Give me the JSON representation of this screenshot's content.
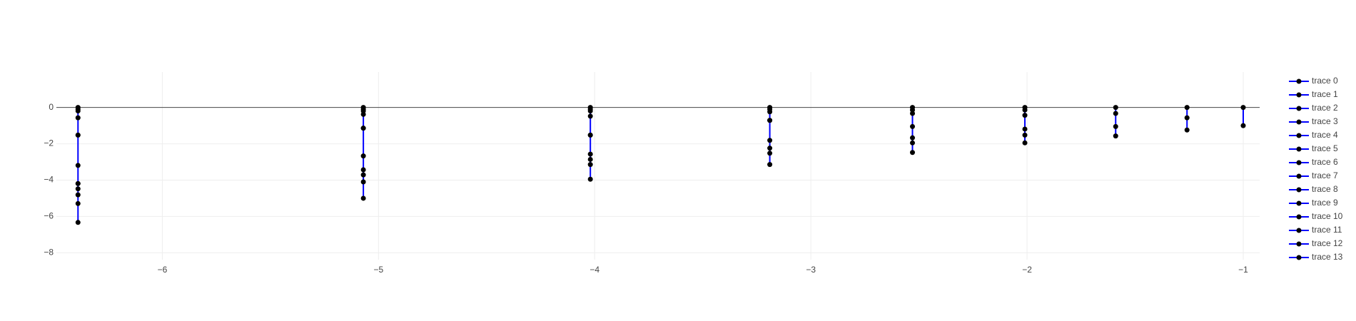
{
  "chart_data": {
    "type": "line",
    "line_color": "#0000ff",
    "marker_color": "#000000",
    "grid": true,
    "legend": "right",
    "xlim": [
      -6.49,
      -0.924
    ],
    "ylim": [
      -8.38,
      1.95
    ],
    "xticks": [
      {
        "value": -6,
        "label": "−6"
      },
      {
        "value": -5,
        "label": "−5"
      },
      {
        "value": -4,
        "label": "−4"
      },
      {
        "value": -3,
        "label": "−3"
      },
      {
        "value": -2,
        "label": "−2"
      },
      {
        "value": -1,
        "label": "−1"
      }
    ],
    "yticks": [
      0,
      {
        "value": -2,
        "label": "−2"
      },
      {
        "value": -4,
        "label": "−4"
      },
      {
        "value": -6,
        "label": "−6"
      },
      {
        "value": -8,
        "label": "−8"
      }
    ],
    "series": [
      {
        "name": "trace 0",
        "x": [
          -6.39,
          -6.39,
          -6.39,
          -6.39,
          -6.39
        ],
        "values": [
          0,
          -0.1,
          -0.19,
          -0.57,
          -1.52
        ]
      },
      {
        "name": "trace 1",
        "x": [
          -6.39,
          -6.39,
          -6.39
        ],
        "values": [
          -1.52,
          -3.19,
          -4.19
        ]
      },
      {
        "name": "trace 2",
        "x": [
          -6.39,
          -6.39,
          -6.39,
          -6.39,
          -6.39
        ],
        "values": [
          -4.19,
          -4.48,
          -4.81,
          -5.29,
          -6.33
        ]
      },
      {
        "name": "trace 3",
        "x": [
          -5.07,
          -5.07,
          -5.07,
          -5.07,
          -5.07
        ],
        "values": [
          0,
          -0.1,
          -0.19,
          -0.38,
          -1.14
        ]
      },
      {
        "name": "trace 4",
        "x": [
          -5.07,
          -5.07,
          -5.07,
          -5.07,
          -5.07,
          -5.07
        ],
        "values": [
          -1.14,
          -2.67,
          -3.43,
          -3.71,
          -4.1,
          -5.0
        ]
      },
      {
        "name": "trace 5",
        "x": [
          -4.02,
          -4.02,
          -4.02,
          -4.02,
          -4.02
        ],
        "values": [
          0,
          -0.1,
          -0.19,
          -0.48,
          -1.52
        ]
      },
      {
        "name": "trace 6",
        "x": [
          -4.02,
          -4.02,
          -4.02,
          -4.02,
          -4.02
        ],
        "values": [
          -1.52,
          -2.57,
          -2.86,
          -3.14,
          -3.95
        ]
      },
      {
        "name": "trace 7",
        "x": [
          -3.19,
          -3.19,
          -3.19,
          -3.19
        ],
        "values": [
          0,
          -0.1,
          -0.24,
          -0.71
        ]
      },
      {
        "name": "trace 8",
        "x": [
          -3.19,
          -3.19,
          -3.19,
          -3.19,
          -3.19
        ],
        "values": [
          -0.71,
          -1.81,
          -2.24,
          -2.52,
          -3.14
        ]
      },
      {
        "name": "trace 9",
        "x": [
          -2.53,
          -2.53,
          -2.53,
          -2.53,
          -2.53,
          -2.53,
          -2.53
        ],
        "values": [
          0,
          -0.14,
          -0.33,
          -1.05,
          -1.67,
          -1.95,
          -2.48
        ]
      },
      {
        "name": "trace 10",
        "x": [
          -2.01,
          -2.01,
          -2.01,
          -2.01,
          -2.01,
          -2.01
        ],
        "values": [
          0,
          -0.14,
          -0.43,
          -1.19,
          -1.52,
          -1.95
        ]
      },
      {
        "name": "trace 11",
        "x": [
          -1.59,
          -1.59,
          -1.59,
          -1.59
        ],
        "values": [
          0,
          -0.33,
          -1.05,
          -1.57
        ]
      },
      {
        "name": "trace 12",
        "x": [
          -1.26,
          -1.26,
          -1.26
        ],
        "values": [
          0,
          -0.57,
          -1.24
        ]
      },
      {
        "name": "trace 13",
        "x": [
          -1.0,
          -1.0
        ],
        "values": [
          0,
          -1.0
        ]
      }
    ]
  }
}
